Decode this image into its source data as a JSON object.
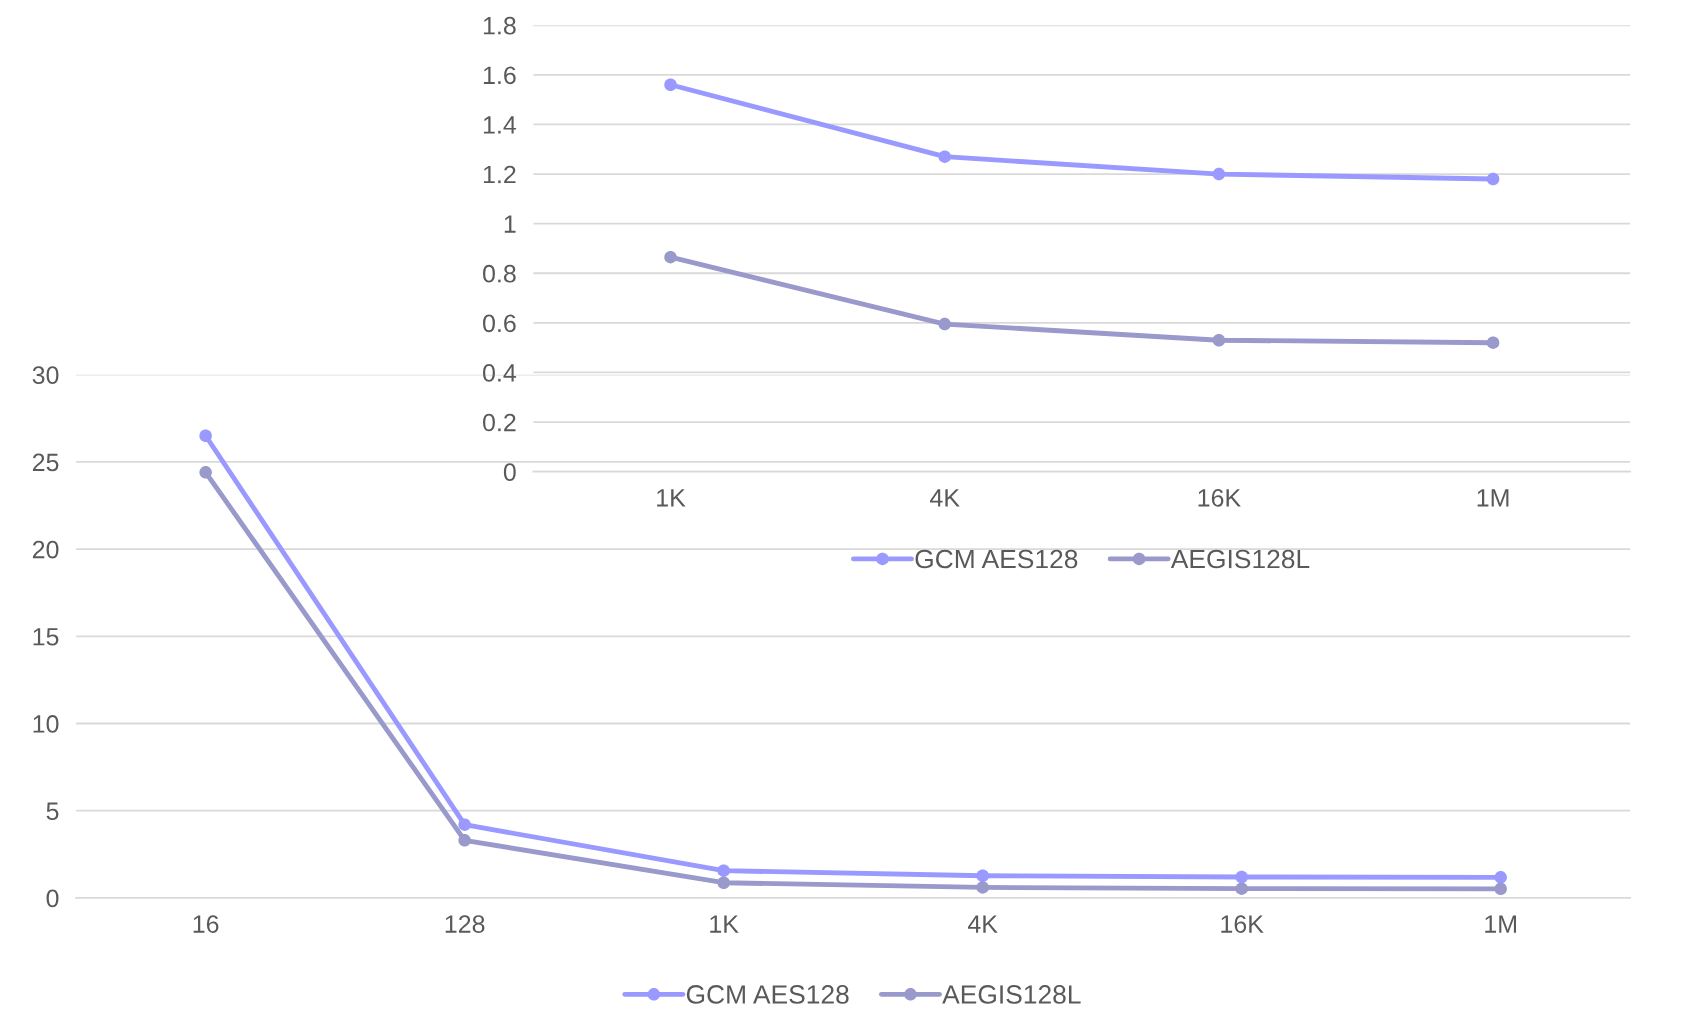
{
  "chart_data": [
    {
      "type": "line",
      "categories": [
        "16",
        "128",
        "1K",
        "4K",
        "16K",
        "1M"
      ],
      "series": [
        {
          "name": "GCM AES128",
          "color": "#9999ff",
          "values": [
            26.5,
            4.2,
            1.56,
            1.27,
            1.2,
            1.18
          ]
        },
        {
          "name": "AEGIS128L",
          "color": "#9999cc",
          "values": [
            24.4,
            3.3,
            0.87,
            0.6,
            0.53,
            0.52
          ]
        }
      ],
      "ylim": [
        0,
        30
      ],
      "yticks": [
        0,
        5,
        10,
        15,
        20,
        25,
        30
      ],
      "grid": "y",
      "legend": "bottom",
      "marker": "circle",
      "line_style": "solid"
    },
    {
      "type": "line",
      "categories": [
        "1K",
        "4K",
        "16K",
        "1M"
      ],
      "series": [
        {
          "name": "GCM AES128",
          "color": "#9999ff",
          "values": [
            1.56,
            1.27,
            1.2,
            1.18
          ]
        },
        {
          "name": "AEGIS128L",
          "color": "#9999cc",
          "values": [
            0.865,
            0.595,
            0.53,
            0.52
          ]
        }
      ],
      "ylim": [
        0,
        1.8
      ],
      "yticks": [
        0,
        0.2,
        0.4,
        0.6,
        0.8,
        1,
        1.2,
        1.4,
        1.6,
        1.8
      ],
      "grid": "y",
      "legend": "bottom",
      "marker": "circle",
      "line_style": "solid"
    }
  ]
}
